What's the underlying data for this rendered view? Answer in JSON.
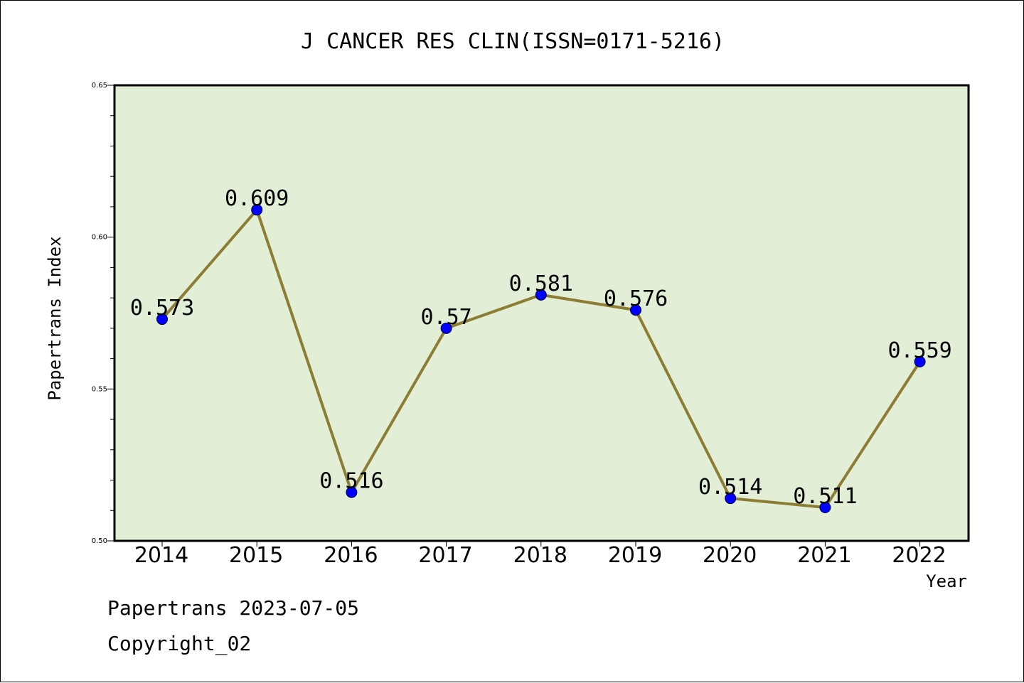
{
  "chart_data": {
    "type": "line",
    "title": "J CANCER RES CLIN(ISSN=0171-5216)",
    "xlabel": "Year",
    "ylabel": "Papertrans Index",
    "x": [
      "2014",
      "2015",
      "2016",
      "2017",
      "2018",
      "2019",
      "2020",
      "2021",
      "2022"
    ],
    "series": [
      {
        "values": [
          0.573,
          0.609,
          0.516,
          0.57,
          0.581,
          0.576,
          0.514,
          0.511,
          0.559
        ]
      }
    ],
    "data_labels": [
      "0.573",
      "0.609",
      "0.516",
      "0.57",
      "0.581",
      "0.576",
      "0.514",
      "0.511",
      "0.559"
    ],
    "ylim": [
      0.5,
      0.65
    ],
    "yticks": [
      "0.50",
      "0.55",
      "0.60",
      "0.65"
    ],
    "grid": false,
    "colors": {
      "plot_bg": "#e2efd6",
      "line": "#8c7d35",
      "marker": "#0000ff"
    }
  },
  "footer": {
    "line1": "Papertrans 2023-07-05",
    "line2": "Copyright_02"
  }
}
